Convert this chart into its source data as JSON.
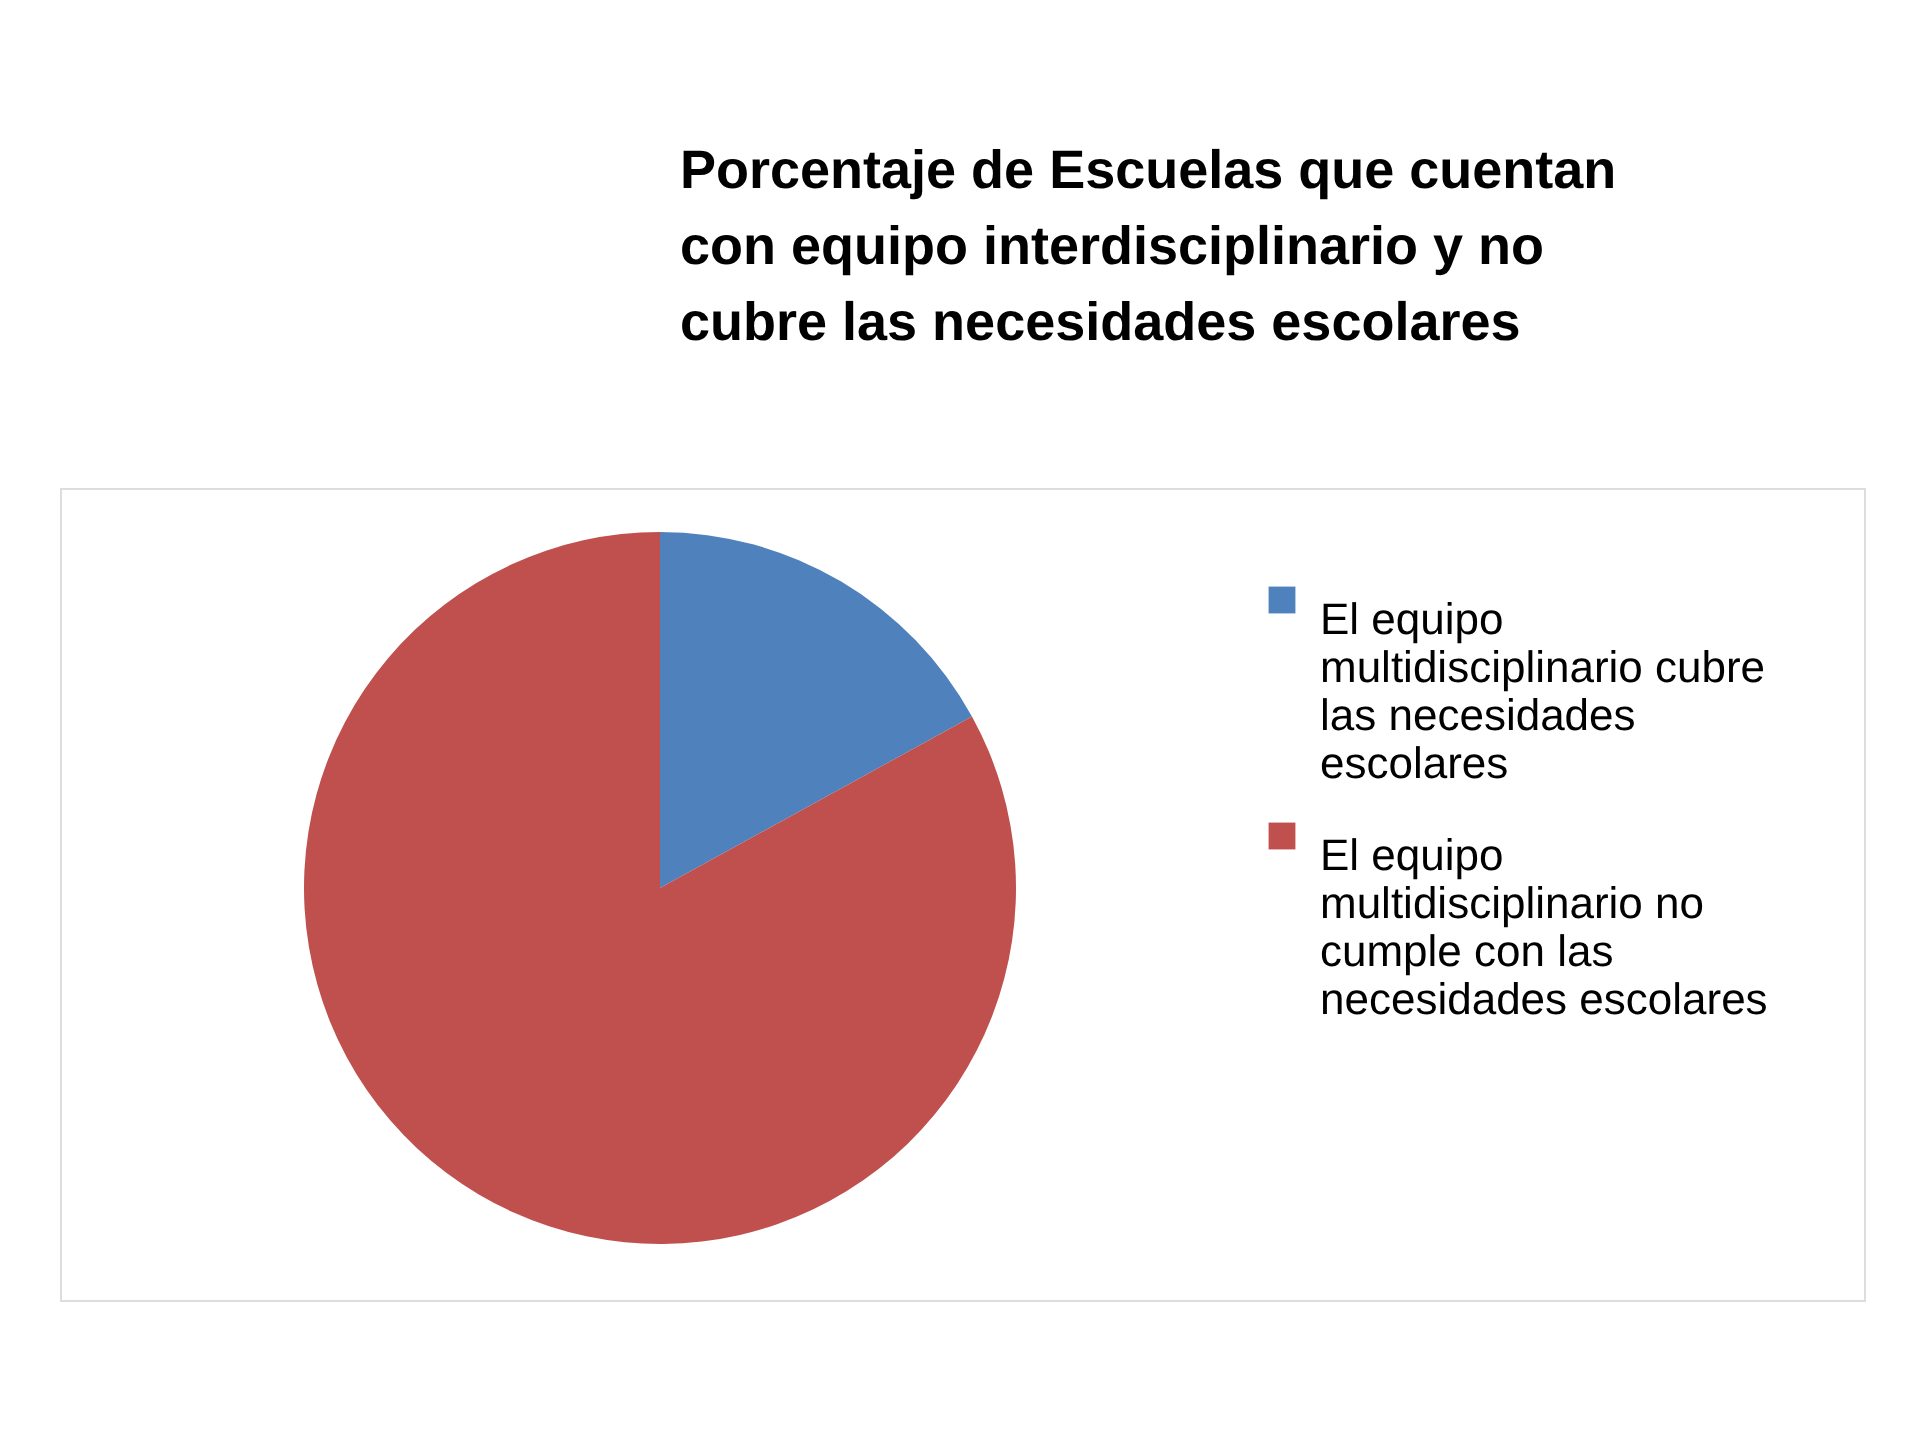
{
  "chart_data": {
    "type": "pie",
    "title": "Porcentaje de Escuelas que cuentan con equipo interdisciplinario y no cubre las necesidades escolares",
    "categories": [
      "El equipo multidisciplinario cubre las necesidades escolares",
      "El equipo multidisciplinario no cumple con las necesidades escolares"
    ],
    "values": [
      17,
      83
    ],
    "colors": [
      "#4f81bd",
      "#c0504d"
    ],
    "legend": "right"
  }
}
